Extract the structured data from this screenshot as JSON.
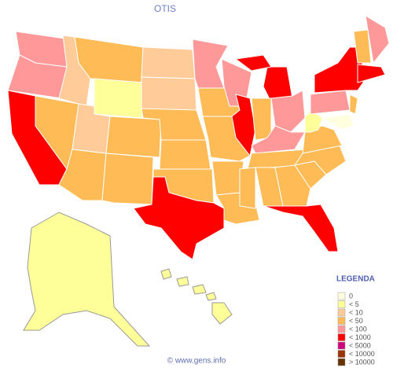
{
  "title": "OTIS",
  "legend": {
    "title": "LEGENDA",
    "items": [
      {
        "label": "0",
        "color": "#ffffe0"
      },
      {
        "label": "< 5",
        "color": "#ffff99"
      },
      {
        "label": "< 10",
        "color": "#ffcc99"
      },
      {
        "label": "< 50",
        "color": "#ffbb55"
      },
      {
        "label": "< 100",
        "color": "#ff9999"
      },
      {
        "label": "< 1000",
        "color": "#ff0000"
      },
      {
        "label": "< 5000",
        "color": "#cc0077"
      },
      {
        "label": "< 10000",
        "color": "#993300"
      },
      {
        "label": "> 10000",
        "color": "#663300"
      }
    ]
  },
  "footer": "© www.gens.info"
}
